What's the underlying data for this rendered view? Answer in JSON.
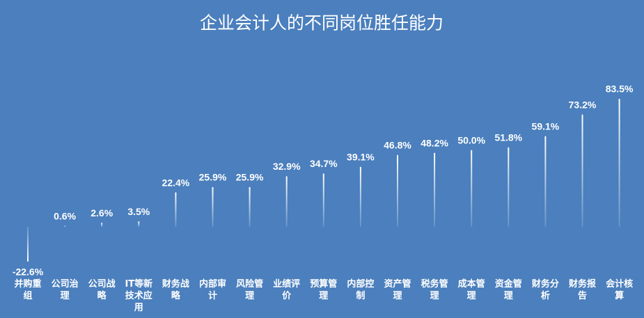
{
  "chart_data": {
    "type": "bar",
    "title": "企业会计人的不同岗位胜任能力",
    "categories": [
      "并购重组",
      "公司治理",
      "公司战略",
      "IT等新技术应用",
      "财务战略",
      "内部审计",
      "风险管理",
      "业绩评价",
      "预算管理",
      "内部控制",
      "资产管理",
      "税务管理",
      "成本管理",
      "资金管理",
      "财务分析",
      "财务报告",
      "会计核算"
    ],
    "values": [
      -22.6,
      0.6,
      2.6,
      3.5,
      22.4,
      25.9,
      25.9,
      32.9,
      34.7,
      39.1,
      46.8,
      48.2,
      50.0,
      51.8,
      59.1,
      73.2,
      83.5
    ],
    "value_labels": [
      "-22.6%",
      "0.6%",
      "2.6%",
      "3.5%",
      "22.4%",
      "25.9%",
      "25.9%",
      "32.9%",
      "34.7%",
      "39.1%",
      "46.8%",
      "48.2%",
      "50.0%",
      "51.8%",
      "59.1%",
      "73.2%",
      "83.5%"
    ],
    "color": "#ffffff",
    "ylim": [
      -25,
      90
    ]
  }
}
